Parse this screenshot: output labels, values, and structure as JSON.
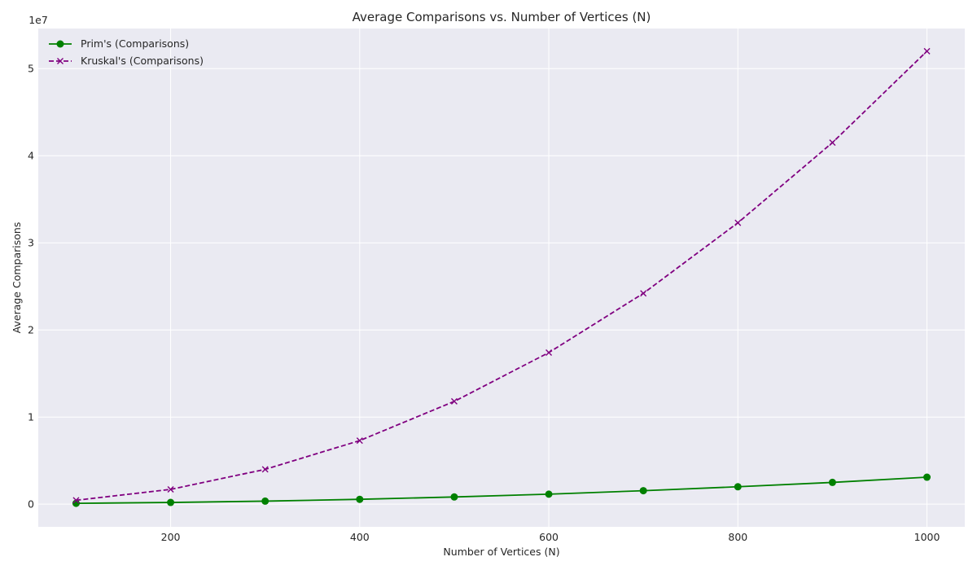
{
  "chart_data": {
    "type": "line",
    "title": "Average Comparisons vs. Number of Vertices (N)",
    "xlabel": "Number of Vertices (N)",
    "ylabel": "Average Comparisons",
    "y_multiplier_label": "1e7",
    "x": [
      100,
      200,
      300,
      400,
      500,
      600,
      700,
      800,
      900,
      1000
    ],
    "xlim": [
      60,
      1040
    ],
    "ylim": [
      -2600000,
      54600000
    ],
    "x_ticks": [
      200,
      400,
      600,
      800,
      1000
    ],
    "x_tick_labels": [
      "200",
      "400",
      "600",
      "800",
      "1000"
    ],
    "y_ticks": [
      0,
      10000000,
      20000000,
      30000000,
      40000000,
      50000000
    ],
    "y_tick_labels": [
      "0",
      "1",
      "2",
      "3",
      "4",
      "5"
    ],
    "grid": true,
    "legend_position": "top-left",
    "background_color": "#eaeaf2",
    "series": [
      {
        "name": "Prim's (Comparisons)",
        "color": "#008000",
        "line_style": "solid",
        "marker": "circle",
        "values": [
          100000,
          200000,
          350000,
          560000,
          830000,
          1150000,
          1550000,
          2000000,
          2500000,
          3100000
        ]
      },
      {
        "name": "Kruskal's (Comparisons)",
        "color": "#800080",
        "line_style": "dashed",
        "marker": "x",
        "values": [
          450000,
          1700000,
          4000000,
          7300000,
          11800000,
          17400000,
          24200000,
          32300000,
          41500000,
          52000000
        ]
      }
    ]
  }
}
